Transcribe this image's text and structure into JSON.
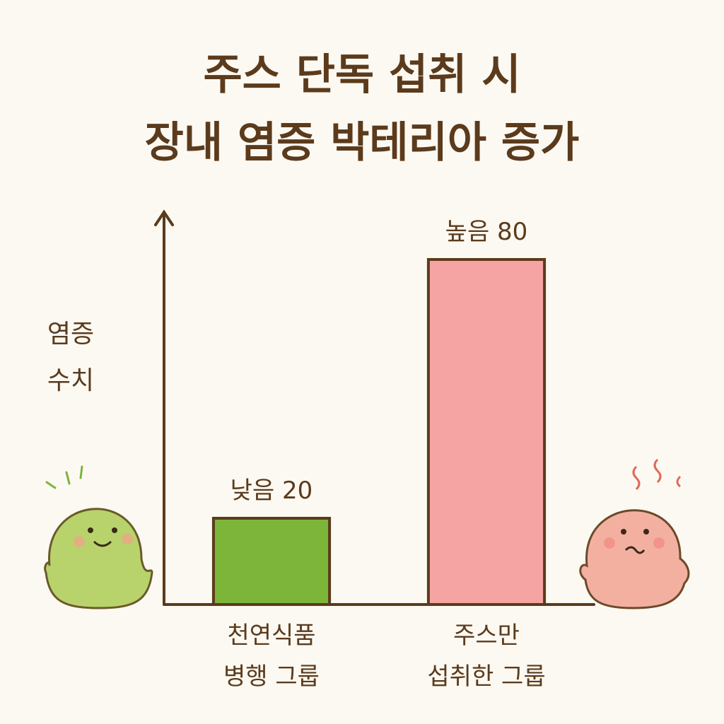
{
  "chart_data": {
    "type": "bar",
    "title": "주스 단독 섭취 시\n장내 염증 박테리아 증가",
    "y_label": "염증\n수치",
    "categories": [
      "천연식품\n병행 그룹",
      "주스만\n섭취한 그룹"
    ],
    "values": [
      20,
      80
    ],
    "value_labels": [
      "낮음 20",
      "높음 80"
    ],
    "colors": [
      "#7cb53a",
      "#f6a3a3"
    ],
    "ylim": [
      0,
      90
    ]
  }
}
